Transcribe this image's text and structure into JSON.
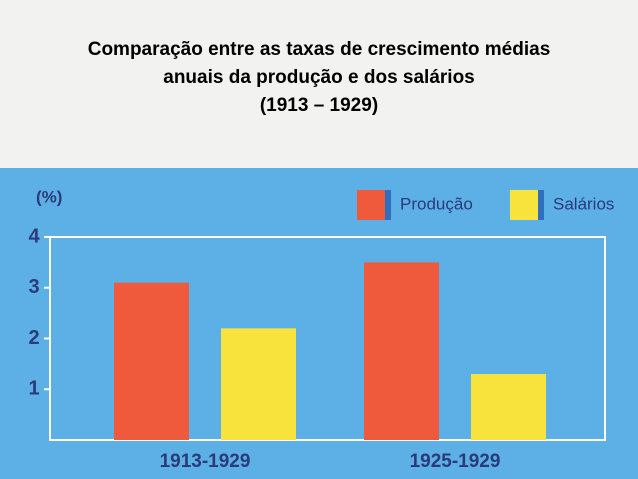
{
  "chart_data": {
    "type": "bar",
    "title": [
      "Comparação entre as taxas de crescimento médias",
      "anuais da produção e dos salários",
      "(1913 – 1929)"
    ],
    "y_label": "(%)",
    "categories": [
      "1913-1929",
      "1925-1929"
    ],
    "series": [
      {
        "name": "Produção",
        "color": "#f05a3c",
        "values": [
          3.1,
          3.5
        ]
      },
      {
        "name": "Salários",
        "color": "#f8e23c",
        "values": [
          2.2,
          1.3
        ]
      }
    ],
    "ylim": [
      0,
      4
    ],
    "yticks": [
      1,
      2,
      3,
      4
    ],
    "legend": "top-right"
  }
}
